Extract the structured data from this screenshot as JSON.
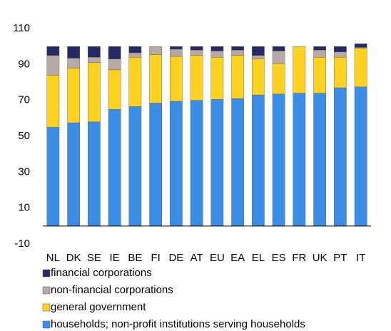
{
  "chart_data": {
    "type": "stacked_bar",
    "categories": [
      "NL",
      "DK",
      "SE",
      "IE",
      "BE",
      "FI",
      "DE",
      "AT",
      "EU",
      "EA",
      "EL",
      "ES",
      "FR",
      "UK",
      "PT",
      "IT"
    ],
    "series": [
      {
        "name": "financial corporations",
        "color": "#252a64",
        "values": [
          5,
          6.5,
          6,
          7,
          3.5,
          0,
          1.5,
          2,
          2.5,
          2,
          5,
          2.5,
          0,
          2,
          3,
          2
        ]
      },
      {
        "name": "non-financial corporations",
        "color": "#b7aaa4",
        "values": [
          11,
          5.5,
          3,
          6,
          2.5,
          4.5,
          4,
          3,
          3.5,
          3,
          2,
          7,
          0,
          4,
          3,
          0.5
        ]
      },
      {
        "name": "general government",
        "color": "#ffd21f",
        "values": [
          29,
          30.5,
          33,
          22,
          27.5,
          27,
          25,
          25,
          23.5,
          24,
          20,
          17,
          26,
          20,
          17,
          21.5
        ]
      },
      {
        "name": "households; non-profit institutions serving households",
        "color": "#3a8ee6",
        "values": [
          55,
          57.5,
          58,
          65,
          66.5,
          68.5,
          69.5,
          70,
          70.5,
          71,
          73,
          73.5,
          74,
          74,
          77,
          77.5
        ]
      }
    ],
    "ylim": [
      -10,
      110
    ],
    "yticks": [
      -10,
      10,
      30,
      50,
      70,
      90,
      110
    ],
    "grid": false
  }
}
